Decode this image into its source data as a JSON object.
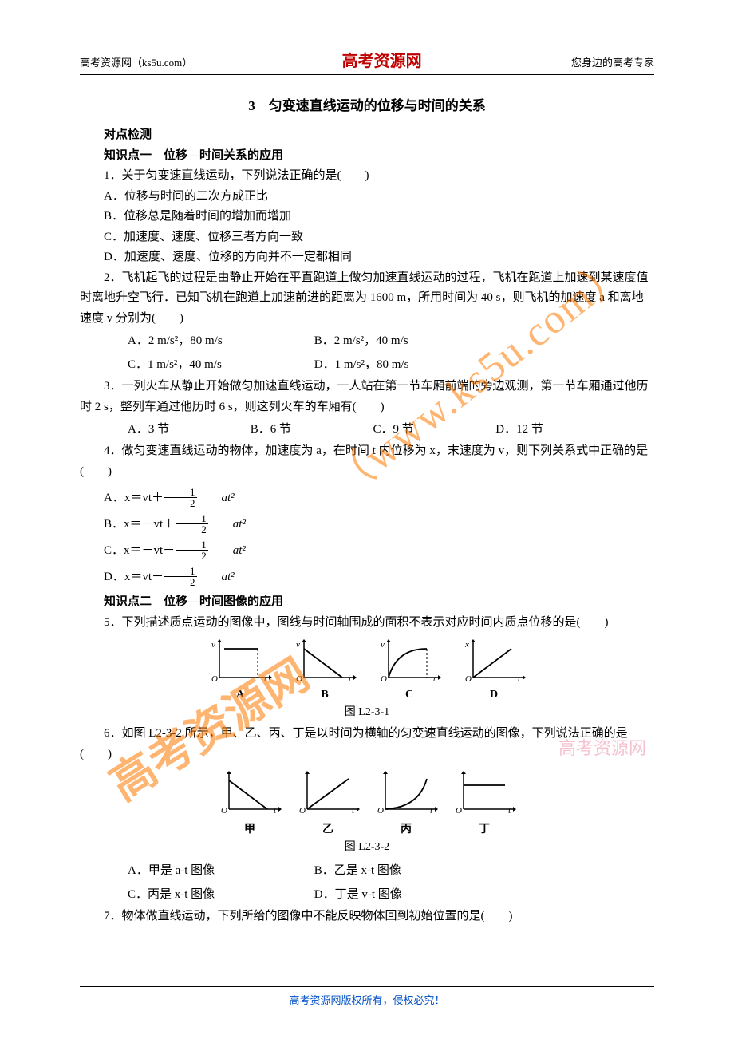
{
  "header": {
    "left": "高考资源网（ks5u.com）",
    "center": "高考资源网",
    "right": "您身边的高考专家"
  },
  "title": "3　匀变速直线运动的位移与时间的关系",
  "section_check": "对点检测",
  "kp1": "知识点一　位移—时间关系的应用",
  "q1": {
    "stem": "1．关于匀变速直线运动，下列说法正确的是(　　)",
    "A": "A．位移与时间的二次方成正比",
    "B": "B．位移总是随着时间的增加而增加",
    "C": "C．加速度、速度、位移三者方向一致",
    "D": "D．加速度、速度、位移的方向并不一定都相同"
  },
  "q2": {
    "stem": "2．飞机起飞的过程是由静止开始在平直跑道上做匀加速直线运动的过程，飞机在跑道上加速到某速度值时离地升空飞行．已知飞机在跑道上加速前进的距离为 1600 m，所用时间为 40 s，则飞机的加速度 a 和离地速度 v 分别为(　　)",
    "A": "A．2 m/s²，80 m/s",
    "B": "B．2 m/s²，40 m/s",
    "C": "C．1 m/s²，40 m/s",
    "D": "D．1 m/s²，80 m/s"
  },
  "q3": {
    "stem": "3．一列火车从静止开始做匀加速直线运动，一人站在第一节车厢前端的旁边观测，第一节车厢通过他历时 2 s，整列车通过他历时 6 s，则这列火车的车厢有(　　)",
    "A": "A．3 节",
    "B": "B．6 节",
    "C": "C．9 节",
    "D": "D．12 节"
  },
  "q4": {
    "stem": "4．做匀变速直线运动的物体，加速度为 a，在时间 t 内位移为 x，末速度为 v，则下列关系式中正确的是(　　)",
    "A_pre": "A．x＝vt＋",
    "B_pre": "B．x＝－vt＋",
    "C_pre": "C．x＝－vt－",
    "D_pre": "D．x＝vt－",
    "frac_num": "1",
    "frac_den": "2",
    "post": "at²"
  },
  "kp2": "知识点二　位移—时间图像的应用",
  "q5": {
    "stem": "5．下列描述质点运动的图像中，图线与时间轴围成的面积不表示对应时间内质点位移的是(　　)",
    "labels": [
      "A",
      "B",
      "C",
      "D"
    ],
    "caption": "图 L2-3-1",
    "yaxis": [
      "v",
      "v",
      "v",
      "x"
    ],
    "curve_type": [
      "rect",
      "tri",
      "conc",
      "line"
    ]
  },
  "q6": {
    "stem": "6．如图 L2-3-2 所示，甲、乙、丙、丁是以时间为横轴的匀变速直线运动的图像，下列说法正确的是(　　)",
    "labels": [
      "甲",
      "乙",
      "丙",
      "丁"
    ],
    "caption": "图 L2-3-2",
    "curve_type": [
      "down_line",
      "up_line",
      "up_curve",
      "flat"
    ],
    "A": "A．甲是 a-t 图像",
    "B": "B．乙是 x-t 图像",
    "C": "C．丙是 x-t 图像",
    "D": "D．丁是 v-t 图像"
  },
  "q7": {
    "stem": "7．物体做直线运动，下列所给的图像中不能反映物体回到初始位置的是(　　)"
  },
  "watermark": {
    "url": "（www.ks5u.com）",
    "cn": "高考资源网",
    "small": "高考资源网"
  },
  "footer": "高考资源网版权所有，侵权必究！",
  "colors": {
    "brand": "#c00000",
    "watermark": "#ff7a00",
    "wm_small": "#f2b4c4",
    "footer": "#0050c8",
    "text": "#000000",
    "bg": "#ffffff"
  }
}
